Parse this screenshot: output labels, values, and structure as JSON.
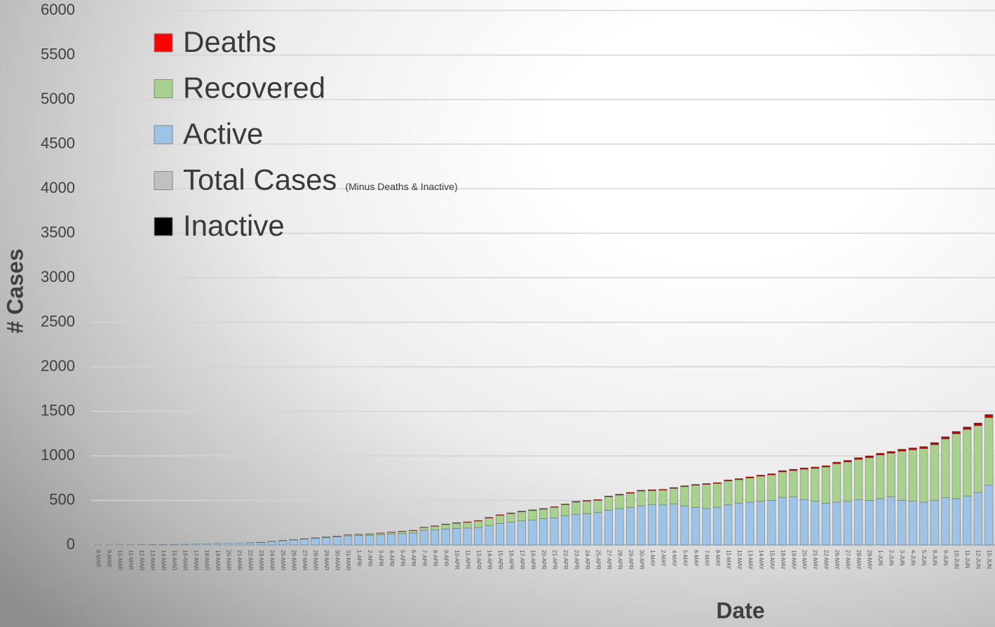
{
  "chart_data": {
    "type": "stacked_bar",
    "x_label": "Date",
    "y_label": "# Cases",
    "categories": [
      "8-MAR",
      "9-MAR",
      "10-MAR",
      "11-MAR",
      "12-MAR",
      "13-MAR",
      "14-MAR",
      "15-MAR",
      "16-MAR",
      "17-MAR",
      "18-MAR",
      "19-MAR",
      "20-MAR",
      "21-MAR",
      "22-MAR",
      "23-MAR",
      "24-MAR",
      "25-MAR",
      "26-MAR",
      "27-MAR",
      "28-MAR",
      "29-MAR",
      "30-MAR",
      "31-MAR",
      "1-APR",
      "2-APR",
      "3-APR",
      "4-APR",
      "5-APR",
      "6-APR",
      "7-APR",
      "8-APR",
      "9-APR",
      "10-APR",
      "11-APR",
      "13-APR",
      "14-APR",
      "15-APR",
      "16-APR",
      "17-APR",
      "18-APR",
      "20-APR",
      "21-APR",
      "22-APR",
      "23-APR",
      "24-APR",
      "25-APR",
      "27-APR",
      "28-APR",
      "29-APR",
      "30-APR",
      "1-MAY",
      "2-MAY",
      "4-MAY",
      "5-MAY",
      "6-MAY",
      "7-MAY",
      "8-MAY",
      "11-MAY",
      "12-MAY",
      "13-MAY",
      "14-MAY",
      "15-MAY",
      "18-MAY",
      "19-MAY",
      "20-MAY",
      "21-MAY",
      "22-MAY",
      "26-MAY",
      "27-MAY",
      "28-MAY",
      "29-MAY",
      "1-JUN",
      "2-JUN",
      "3-JUN",
      "4-JUN",
      "5-JUN",
      "8-JUN",
      "9-JUN",
      "10-JUN",
      "11-JUN",
      "12-JUN",
      "15-JUN"
    ],
    "series": [
      {
        "name": "Active",
        "color": "#9dc3e6",
        "values": [
          1,
          1,
          2,
          2,
          3,
          4,
          5,
          6,
          8,
          10,
          14,
          17,
          20,
          22,
          24,
          28,
          38,
          47,
          56,
          65,
          74,
          82,
          90,
          102,
          105,
          108,
          115,
          122,
          128,
          135,
          165,
          170,
          180,
          185,
          190,
          195,
          215,
          240,
          255,
          270,
          280,
          295,
          305,
          330,
          345,
          350,
          365,
          390,
          405,
          420,
          440,
          455,
          450,
          460,
          440,
          420,
          410,
          420,
          450,
          470,
          480,
          490,
          500,
          535,
          540,
          510,
          490,
          470,
          480,
          490,
          510,
          500,
          520,
          540,
          500,
          490,
          480,
          500,
          530,
          520,
          550,
          590,
          670
        ]
      },
      {
        "name": "Recovered",
        "color": "#a9d18e",
        "values": [
          0,
          0,
          0,
          0,
          0,
          0,
          0,
          0,
          0,
          0,
          0,
          0,
          0,
          0,
          1,
          1,
          1,
          2,
          3,
          4,
          5,
          6,
          8,
          10,
          12,
          14,
          16,
          19,
          22,
          25,
          30,
          39,
          49,
          58,
          63,
          73,
          87,
          92,
          97,
          102,
          107,
          107,
          117,
          122,
          136,
          141,
          136,
          151,
          155,
          160,
          165,
          155,
          165,
          175,
          215,
          250,
          270,
          270,
          268,
          263,
          272,
          282,
          287,
          285,
          295,
          340,
          370,
          405,
          432,
          442,
          450,
          480,
          490,
          490,
          553,
          578,
          602,
          625,
          660,
          728,
          747,
          750,
          760
        ]
      },
      {
        "name": "Deaths",
        "color": "#c00000",
        "values": [
          0,
          0,
          0,
          0,
          0,
          0,
          0,
          0,
          0,
          0,
          0,
          0,
          0,
          0,
          0,
          1,
          1,
          1,
          1,
          1,
          1,
          2,
          2,
          3,
          3,
          3,
          4,
          4,
          5,
          5,
          5,
          6,
          6,
          7,
          7,
          7,
          8,
          8,
          8,
          8,
          8,
          8,
          8,
          8,
          9,
          9,
          9,
          9,
          10,
          10,
          10,
          10,
          10,
          10,
          10,
          10,
          10,
          10,
          12,
          12,
          13,
          13,
          13,
          15,
          15,
          15,
          15,
          15,
          18,
          18,
          20,
          20,
          20,
          20,
          22,
          22,
          23,
          25,
          25,
          27,
          28,
          30,
          35
        ]
      }
    ],
    "legend_swatches": {
      "Deaths": "#ff0000",
      "Recovered": "#a9d18e",
      "Active": "#9dc3e6"
    },
    "extra_legend": [
      {
        "name": "Total Cases",
        "note": "(Minus Deaths & Inactive)",
        "color": "#c0c0c0"
      },
      {
        "name": "Inactive",
        "color": "#000000"
      }
    ],
    "ylim": [
      0,
      6000
    ],
    "yticks": [
      0,
      500,
      1000,
      1500,
      2000,
      2500,
      3000,
      3500,
      4000,
      4500,
      5000,
      5500,
      6000
    ],
    "grid": true
  }
}
